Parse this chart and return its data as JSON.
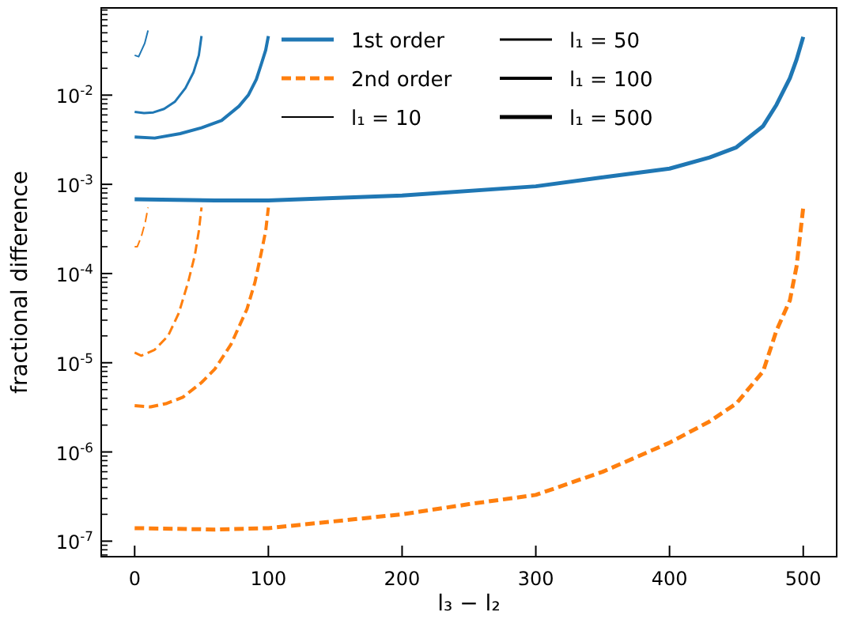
{
  "chart_data": {
    "type": "line",
    "xlabel": "l₃ − l₂",
    "ylabel": "fractional difference",
    "log": "y",
    "grid": false,
    "legend": "top",
    "xlim": [
      -25,
      525
    ],
    "xticks": [
      0,
      100,
      200,
      300,
      400,
      500
    ],
    "ylim": [
      6.7e-08,
      0.095
    ],
    "yticks": [
      {
        "value": 1e-07,
        "label": "10$^{-7}$"
      },
      {
        "value": 1e-06,
        "label": "10$^{-6}$"
      },
      {
        "value": 1e-05,
        "label": "10$^{-5}$"
      },
      {
        "value": 0.0001,
        "label": "10$^{-4}$"
      },
      {
        "value": 0.001,
        "label": "10$^{-3}$"
      },
      {
        "value": 0.01,
        "label": "10$^{-2}$"
      },
      {
        "value": 7e-08,
        "label": null
      },
      {
        "value": 8e-08,
        "label": null
      },
      {
        "value": 9e-08,
        "label": null
      },
      {
        "value": 2e-07,
        "label": null
      },
      {
        "value": 3e-07,
        "label": null
      },
      {
        "value": 4e-07,
        "label": null
      },
      {
        "value": 5e-07,
        "label": null
      },
      {
        "value": 6e-07,
        "label": null
      },
      {
        "value": 7e-07,
        "label": null
      },
      {
        "value": 8e-07,
        "label": null
      },
      {
        "value": 9e-07,
        "label": null
      },
      {
        "value": 2e-06,
        "label": null
      },
      {
        "value": 3e-06,
        "label": null
      },
      {
        "value": 4e-06,
        "label": null
      },
      {
        "value": 5e-06,
        "label": null
      },
      {
        "value": 6e-06,
        "label": null
      },
      {
        "value": 7e-06,
        "label": null
      },
      {
        "value": 8e-06,
        "label": null
      },
      {
        "value": 9e-06,
        "label": null
      },
      {
        "value": 2e-05,
        "label": null
      },
      {
        "value": 3e-05,
        "label": null
      },
      {
        "value": 4e-05,
        "label": null
      },
      {
        "value": 5e-05,
        "label": null
      },
      {
        "value": 6e-05,
        "label": null
      },
      {
        "value": 7e-05,
        "label": null
      },
      {
        "value": 8e-05,
        "label": null
      },
      {
        "value": 9e-05,
        "label": null
      },
      {
        "value": 0.0002,
        "label": null
      },
      {
        "value": 0.0003,
        "label": null
      },
      {
        "value": 0.0004,
        "label": null
      },
      {
        "value": 0.0005,
        "label": null
      },
      {
        "value": 0.0006,
        "label": null
      },
      {
        "value": 0.0007,
        "label": null
      },
      {
        "value": 0.0008,
        "label": null
      },
      {
        "value": 0.0009,
        "label": null
      },
      {
        "value": 0.002,
        "label": null
      },
      {
        "value": 0.003,
        "label": null
      },
      {
        "value": 0.004,
        "label": null
      },
      {
        "value": 0.005,
        "label": null
      },
      {
        "value": 0.006,
        "label": null
      },
      {
        "value": 0.007,
        "label": null
      },
      {
        "value": 0.008,
        "label": null
      },
      {
        "value": 0.009,
        "label": null
      },
      {
        "value": 0.02,
        "label": null
      },
      {
        "value": 0.03,
        "label": null
      },
      {
        "value": 0.04,
        "label": null
      },
      {
        "value": 0.05,
        "label": null
      },
      {
        "value": 0.06,
        "label": null
      },
      {
        "value": 0.07,
        "label": null
      },
      {
        "value": 0.08,
        "label": null
      },
      {
        "value": 0.09,
        "label": null
      }
    ],
    "annotations": [
      "l₁ = 10",
      "l₁ = 50",
      "l₁ = 100",
      "l₁ = 500"
    ],
    "series": [
      {
        "color": "#1f77b4",
        "line_style": "solid",
        "x": [
          0,
          3,
          7.5,
          10
        ],
        "values": [
          0.028,
          0.027,
          0.038,
          0.053
        ]
      },
      {
        "color": "#1f77b4",
        "line_style": "solid",
        "x": [
          0,
          7,
          14,
          22,
          30,
          38,
          44,
          48,
          50
        ],
        "values": [
          0.0065,
          0.0063,
          0.0064,
          0.007,
          0.0084,
          0.012,
          0.018,
          0.028,
          0.046
        ]
      },
      {
        "color": "#1f77b4",
        "line_style": "solid",
        "x": [
          0,
          15,
          34,
          50,
          65,
          78,
          85,
          91,
          95,
          98,
          100
        ],
        "values": [
          0.0034,
          0.0033,
          0.0037,
          0.0043,
          0.0052,
          0.0075,
          0.01,
          0.015,
          0.023,
          0.032,
          0.046
        ]
      },
      {
        "name": "1st order",
        "color": "#1f77b4",
        "line_style": "solid",
        "x": [
          0,
          60,
          100,
          200,
          300,
          350,
          400,
          430,
          450,
          470,
          480,
          490,
          495,
          500
        ],
        "values": [
          0.00068,
          0.00066,
          0.00066,
          0.00075,
          0.00095,
          0.0012,
          0.0015,
          0.002,
          0.0026,
          0.0045,
          0.0078,
          0.0155,
          0.025,
          0.045
        ]
      },
      {
        "color": "#ff7f0e",
        "line_style": "dashed",
        "x": [
          0,
          2,
          5,
          8,
          10
        ],
        "values": [
          0.0002,
          0.0002,
          0.00026,
          0.00038,
          0.00055
        ]
      },
      {
        "color": "#ff7f0e",
        "line_style": "dashed",
        "x": [
          0,
          5,
          15,
          25,
          33,
          40,
          45,
          48,
          50
        ],
        "values": [
          1.3e-05,
          1.2e-05,
          1.4e-05,
          2e-05,
          3.6e-05,
          8e-05,
          0.00016,
          0.0003,
          0.00055
        ]
      },
      {
        "color": "#ff7f0e",
        "line_style": "dashed",
        "x": [
          0,
          12,
          24,
          36,
          50,
          60,
          72,
          84,
          90,
          95,
          98,
          100
        ],
        "values": [
          3.3e-06,
          3.2e-06,
          3.5e-06,
          4.1e-06,
          6e-06,
          8.5e-06,
          1.6e-05,
          4e-05,
          8e-05,
          0.00018,
          0.0003,
          0.00055
        ]
      },
      {
        "name": "2nd order",
        "color": "#ff7f0e",
        "line_style": "dashed",
        "x": [
          0,
          60,
          100,
          200,
          250,
          300,
          350,
          400,
          430,
          450,
          470,
          480,
          490,
          495,
          500
        ],
        "values": [
          1.4e-07,
          1.35e-07,
          1.4e-07,
          2e-07,
          2.6e-07,
          3.3e-07,
          6e-07,
          1.27e-06,
          2.2e-06,
          3.5e-06,
          8e-06,
          2.3e-05,
          5e-05,
          0.00012,
          0.00055
        ]
      }
    ]
  }
}
